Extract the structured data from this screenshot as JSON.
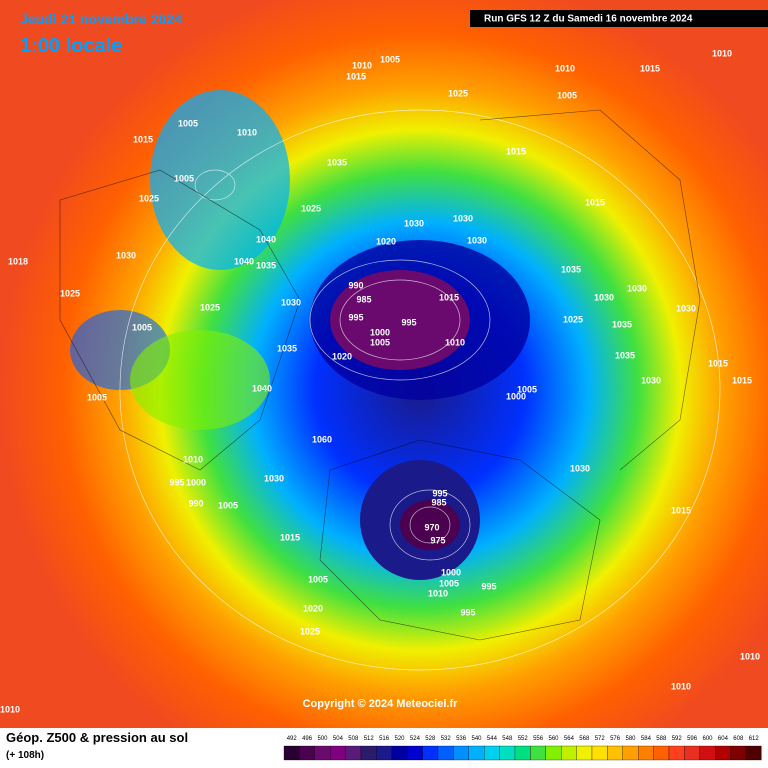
{
  "header": {
    "date": "Jeudi 21 novembre 2024",
    "time": "1:00 locale",
    "run": "Run GFS 12 Z du Samedi 16 novembre 2024"
  },
  "copyright": "Copyright © 2024 Meteociel.fr",
  "caption": {
    "title": "Géop. Z500 & pression au sol",
    "subtitle": "(+ 108h)"
  },
  "legend": {
    "values": [
      492,
      496,
      500,
      504,
      508,
      512,
      516,
      520,
      524,
      528,
      532,
      536,
      540,
      544,
      548,
      552,
      556,
      560,
      564,
      568,
      572,
      576,
      580,
      584,
      588,
      592,
      596,
      600,
      604,
      608,
      612
    ],
    "colors": [
      "#2a0033",
      "#4b0050",
      "#6a0a6e",
      "#800080",
      "#5a1a7a",
      "#2b1b6b",
      "#1a1a8a",
      "#0000a0",
      "#0000d0",
      "#0030ff",
      "#0060ff",
      "#0090ff",
      "#00b0ff",
      "#00d0f0",
      "#00e0c0",
      "#00e080",
      "#40e040",
      "#80f000",
      "#c0f000",
      "#f0f000",
      "#ffe000",
      "#ffc000",
      "#ffa000",
      "#ff8000",
      "#ff6000",
      "#ff4020",
      "#e83020",
      "#d01010",
      "#b00000",
      "#800000",
      "#500000"
    ]
  },
  "isobar_labels": [
    1010,
    1005,
    1015,
    1010,
    1015,
    1010,
    1005,
    1025,
    1005,
    1010,
    1015,
    1035,
    1015,
    1005,
    1025,
    1025,
    1015,
    1030,
    1030,
    1030,
    1020,
    1040,
    1040,
    1035,
    1035,
    1030,
    1018,
    1025,
    990,
    985,
    1015,
    1030,
    1030,
    1030,
    1030,
    1025,
    995,
    995,
    1025,
    1035,
    1005,
    1000,
    1005,
    1010,
    1035,
    1020,
    1035,
    1015,
    1005,
    1000,
    1040,
    1030,
    1015,
    1005,
    1060,
    1010,
    1030,
    1030,
    995,
    1000,
    995,
    985,
    990,
    1005,
    1015,
    970,
    975,
    1015,
    1000,
    1005,
    995,
    1010,
    1005,
    1020,
    995,
    1025,
    1010,
    1010,
    1010
  ]
}
